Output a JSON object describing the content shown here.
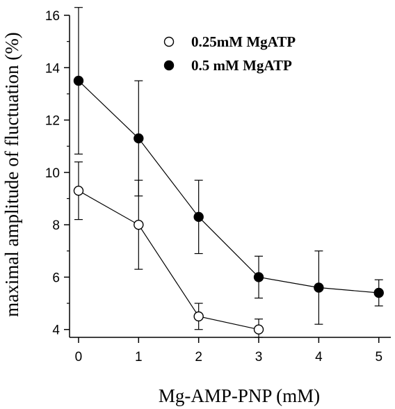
{
  "chart_data": {
    "type": "scatter",
    "xlabel": "Mg-AMP-PNP (mM)",
    "ylabel": "maximal amplitude of fluctuation (%)",
    "xlim": [
      -0.15,
      5.2
    ],
    "ylim": [
      3.7,
      16
    ],
    "xticks": [
      "0",
      "1",
      "2",
      "3",
      "4",
      "5"
    ],
    "yticks": [
      "4",
      "6",
      "8",
      "10",
      "12",
      "14",
      "16"
    ],
    "legend_position": "top-right",
    "grid": false,
    "series": [
      {
        "name": "0.25mM MgATP",
        "marker": "open-circle",
        "color": "#000000",
        "x": [
          0,
          1,
          2,
          3
        ],
        "y": [
          9.3,
          8.0,
          4.5,
          4.0
        ],
        "err_low": [
          8.2,
          6.3,
          4.0,
          3.7
        ],
        "err_high": [
          10.4,
          9.7,
          5.0,
          4.4
        ]
      },
      {
        "name": "0.5 mM MgATP",
        "marker": "filled-circle",
        "color": "#000000",
        "x": [
          0,
          1,
          2,
          3,
          4,
          5
        ],
        "y": [
          13.5,
          11.3,
          8.3,
          6.0,
          5.6,
          5.4
        ],
        "err_low": [
          10.7,
          9.1,
          6.9,
          5.2,
          4.2,
          4.9
        ],
        "err_high": [
          16.3,
          13.5,
          9.7,
          6.8,
          7.0,
          5.9
        ]
      }
    ]
  }
}
